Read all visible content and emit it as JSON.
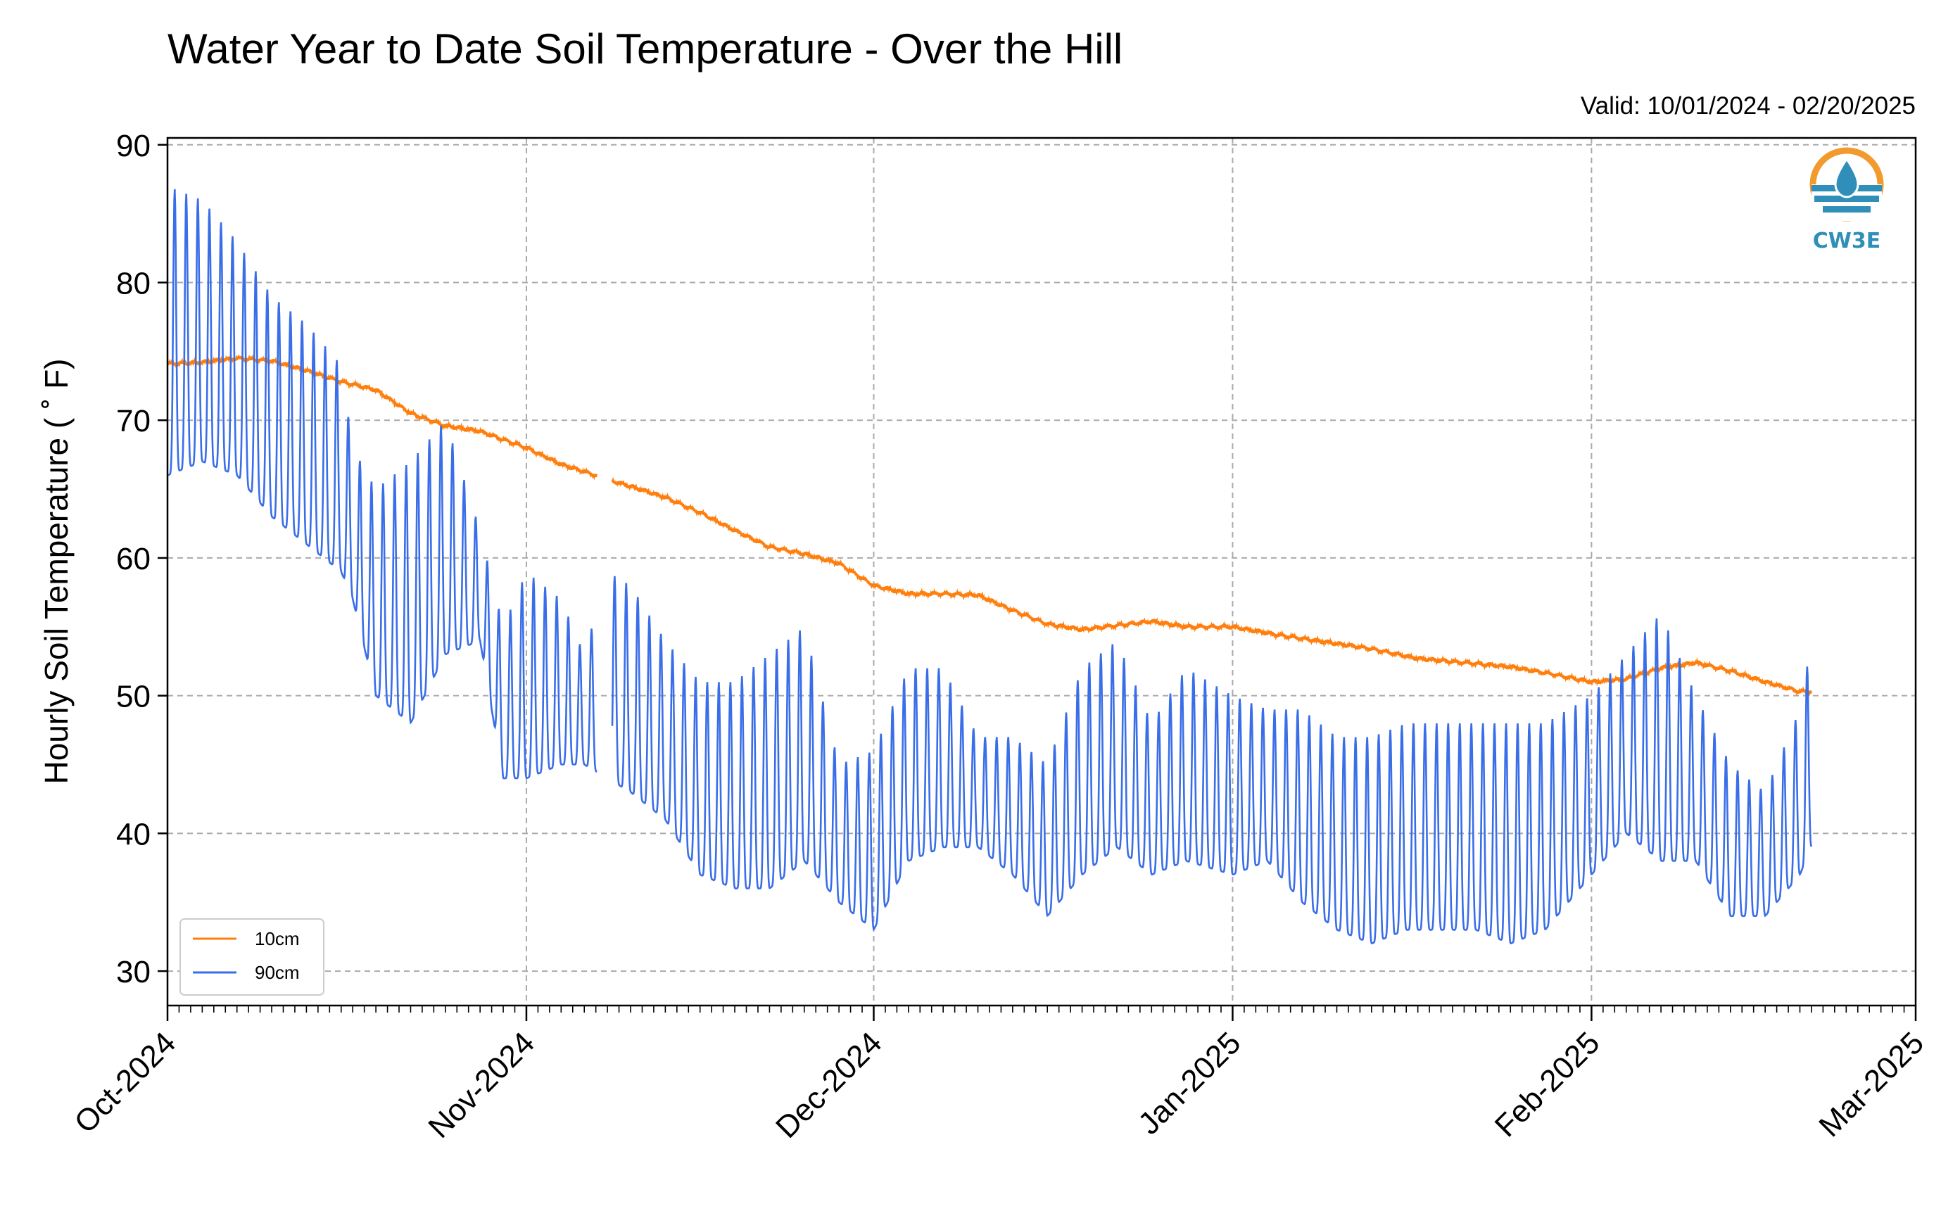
{
  "colors": {
    "series_10cm": "#ff7f0e",
    "series_90cm": "#3a6ee8",
    "logo_orange": "#f29a2e",
    "logo_teal": "#2f8fb8"
  },
  "logo": {
    "text": "CW3E"
  },
  "chart_data": {
    "type": "line",
    "title": "Water Year to Date Soil Temperature - Over the Hill",
    "subtitle": "Valid: 10/01/2024 - 02/20/2025",
    "xlabel": "",
    "ylabel": "Hourly Soil Temperature ($^\\circ$F)",
    "ylabel_display": "Hourly Soil Temperature ( ˚ F)",
    "xlim": [
      "2024-10-01",
      "2025-03-01"
    ],
    "ylim": [
      27.5,
      90.5
    ],
    "x_ticks": [
      "2024-10-01",
      "2024-11-01",
      "2024-12-01",
      "2025-01-01",
      "2025-02-01",
      "2025-03-01"
    ],
    "x_tick_labels": [
      "Oct-2024",
      "Nov-2024",
      "Dec-2024",
      "Jan-2025",
      "Feb-2025",
      "Mar-2025"
    ],
    "y_ticks": [
      30,
      40,
      50,
      60,
      70,
      80,
      90
    ],
    "y_tick_labels": [
      "30",
      "40",
      "50",
      "60",
      "70",
      "80",
      "90"
    ],
    "grid": true,
    "legend_position": "lower-left",
    "series": [
      {
        "name": "10cm",
        "color": "#ff7f0e",
        "x": [
          "2024-10-01",
          "2024-10-04",
          "2024-10-07",
          "2024-10-10",
          "2024-10-13",
          "2024-10-16",
          "2024-10-19",
          "2024-10-22",
          "2024-10-25",
          "2024-10-28",
          "2024-11-01",
          "2024-11-04",
          "2024-11-07",
          "2024-11-08",
          "2024-11-10",
          "2024-11-13",
          "2024-11-16",
          "2024-11-19",
          "2024-11-22",
          "2024-11-25",
          "2024-11-28",
          "2024-12-01",
          "2024-12-04",
          "2024-12-07",
          "2024-12-10",
          "2024-12-13",
          "2024-12-16",
          "2024-12-19",
          "2024-12-22",
          "2024-12-25",
          "2024-12-28",
          "2025-01-01",
          "2025-01-05",
          "2025-01-09",
          "2025-01-13",
          "2025-01-17",
          "2025-01-21",
          "2025-01-25",
          "2025-01-29",
          "2025-02-01",
          "2025-02-04",
          "2025-02-07",
          "2025-02-10",
          "2025-02-13",
          "2025-02-16",
          "2025-02-19",
          "2025-02-20"
        ],
        "y": [
          74.1,
          74.2,
          74.5,
          74.3,
          73.6,
          72.8,
          72.2,
          70.5,
          69.6,
          69.2,
          68.0,
          66.8,
          66.0,
          65.7,
          65.2,
          64.4,
          63.3,
          62.0,
          60.8,
          60.3,
          59.6,
          58.0,
          57.4,
          57.4,
          57.3,
          56.2,
          55.2,
          54.8,
          55.1,
          55.4,
          55.0,
          55.0,
          54.4,
          53.9,
          53.4,
          52.7,
          52.4,
          52.1,
          51.5,
          51.0,
          51.2,
          52.0,
          52.4,
          51.8,
          51.0,
          50.3,
          50.3
        ]
      },
      {
        "name": "90cm",
        "color": "#3a6ee8",
        "x": [
          "2024-10-01",
          "2024-10-04",
          "2024-10-07",
          "2024-10-10",
          "2024-10-13",
          "2024-10-16",
          "2024-10-17",
          "2024-10-19",
          "2024-10-22",
          "2024-10-25",
          "2024-10-28",
          "2024-10-30",
          "2024-11-01",
          "2024-11-04",
          "2024-11-06",
          "2024-11-08",
          "2024-11-10",
          "2024-11-13",
          "2024-11-16",
          "2024-11-19",
          "2024-11-22",
          "2024-11-25",
          "2024-11-28",
          "2024-12-01",
          "2024-12-04",
          "2024-12-07",
          "2024-12-10",
          "2024-12-13",
          "2024-12-16",
          "2024-12-19",
          "2024-12-22",
          "2024-12-25",
          "2024-12-28",
          "2025-01-01",
          "2025-01-04",
          "2025-01-07",
          "2025-01-10",
          "2025-01-13",
          "2025-01-16",
          "2025-01-19",
          "2025-01-22",
          "2025-01-25",
          "2025-01-28",
          "2025-02-01",
          "2025-02-04",
          "2025-02-07",
          "2025-02-10",
          "2025-02-13",
          "2025-02-16",
          "2025-02-19",
          "2025-02-20"
        ],
        "min": [
          66,
          67,
          66,
          63,
          61,
          59,
          57,
          50,
          48,
          53,
          54,
          44,
          44,
          45,
          45,
          44,
          43,
          41,
          37,
          36,
          36,
          38,
          35,
          33,
          38,
          39,
          39,
          37,
          34,
          37,
          39,
          37,
          38,
          37,
          38,
          35,
          33,
          32,
          33,
          33,
          33,
          32,
          33,
          37,
          40,
          38,
          38,
          34,
          34,
          37,
          39
        ],
        "max": [
          87,
          86,
          83,
          79,
          77,
          74,
          68,
          65,
          67,
          70,
          62,
          55,
          59,
          57,
          53,
          59,
          58,
          54,
          51,
          51,
          53,
          55,
          45,
          46,
          52,
          52,
          47,
          47,
          45,
          52,
          54,
          48,
          52,
          50,
          49,
          49,
          47,
          47,
          48,
          48,
          48,
          48,
          48,
          50,
          53,
          56,
          50,
          45,
          43,
          49,
          54
        ]
      }
    ]
  }
}
